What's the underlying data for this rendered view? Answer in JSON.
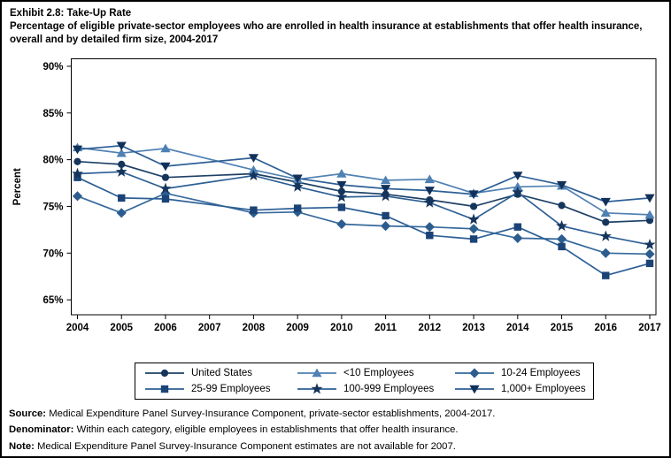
{
  "header": {
    "title": "Exhibit 2.8: Take-Up Rate",
    "subtitle": "Percentage of eligible private-sector employees who are enrolled in health insurance at establishments that offer health insurance, overall and by detailed firm size, 2004-2017"
  },
  "chart_data": {
    "type": "line",
    "ylabel": "Percent",
    "yticks": [
      65,
      70,
      75,
      80,
      85,
      90
    ],
    "ytick_suffix": "%",
    "ylim": [
      65,
      90
    ],
    "ylim_draw": [
      63.4,
      90.8
    ],
    "x_ticks": [
      2004,
      2005,
      2006,
      2007,
      2008,
      2009,
      2010,
      2011,
      2012,
      2013,
      2014,
      2015,
      2016,
      2017
    ],
    "years": [
      2004,
      2005,
      2006,
      2008,
      2009,
      2010,
      2011,
      2012,
      2013,
      2014,
      2015,
      2016,
      2017
    ],
    "missing_year_note": "2007 estimates not available",
    "legend_position": "bottom",
    "grid": false,
    "series": [
      {
        "name": "United States",
        "marker": "circle",
        "marker_color": "#16355c",
        "line_color": "#1d4066",
        "values": [
          79.8,
          79.5,
          78.1,
          78.5,
          77.6,
          76.6,
          76.3,
          75.7,
          75.0,
          76.3,
          75.1,
          73.3,
          73.5
        ]
      },
      {
        "name": "<10 Employees",
        "marker": "triangle-up",
        "marker_color": "#4f81b3",
        "line_color": "#4f81b3",
        "values": [
          81.3,
          80.7,
          81.2,
          78.9,
          77.9,
          78.5,
          77.8,
          77.9,
          76.4,
          77.1,
          77.2,
          74.3,
          74.1
        ]
      },
      {
        "name": "10-24 Employees",
        "marker": "diamond",
        "marker_color": "#2c5d8e",
        "line_color": "#35699c",
        "values": [
          76.1,
          74.3,
          76.4,
          74.3,
          74.4,
          73.1,
          72.9,
          72.8,
          72.6,
          71.6,
          71.5,
          70.0,
          69.9
        ]
      },
      {
        "name": "25-99 Employees",
        "marker": "square",
        "marker_color": "#1b4376",
        "line_color": "#2d5f95",
        "values": [
          78.1,
          75.9,
          75.8,
          74.6,
          74.8,
          74.9,
          74.0,
          71.9,
          71.5,
          72.8,
          70.7,
          67.6,
          68.9
        ]
      },
      {
        "name": "100-999 Employees",
        "marker": "star",
        "marker_color": "#16355c",
        "line_color": "#2d5f95",
        "values": [
          78.5,
          78.7,
          76.9,
          78.3,
          77.1,
          76.0,
          76.1,
          75.4,
          73.6,
          76.5,
          72.9,
          71.8,
          70.9
        ]
      },
      {
        "name": "1,000+ Employees",
        "marker": "triangle-down",
        "marker_color": "#12315a",
        "line_color": "#2d5f95",
        "values": [
          81.1,
          81.5,
          79.3,
          80.2,
          78.0,
          77.3,
          76.9,
          76.7,
          76.3,
          78.3,
          77.3,
          75.5,
          75.9
        ]
      }
    ]
  },
  "notes": [
    {
      "label": "Source:",
      "text": " Medical Expenditure Panel Survey-Insurance Component, private-sector establishments, 2004-2017."
    },
    {
      "label": "Denominator:",
      "text": " Within each category, eligible employees in establishments that offer health insurance."
    },
    {
      "label": "Note:",
      "text": " Medical Expenditure Panel Survey-Insurance Component estimates are not available for 2007."
    }
  ]
}
